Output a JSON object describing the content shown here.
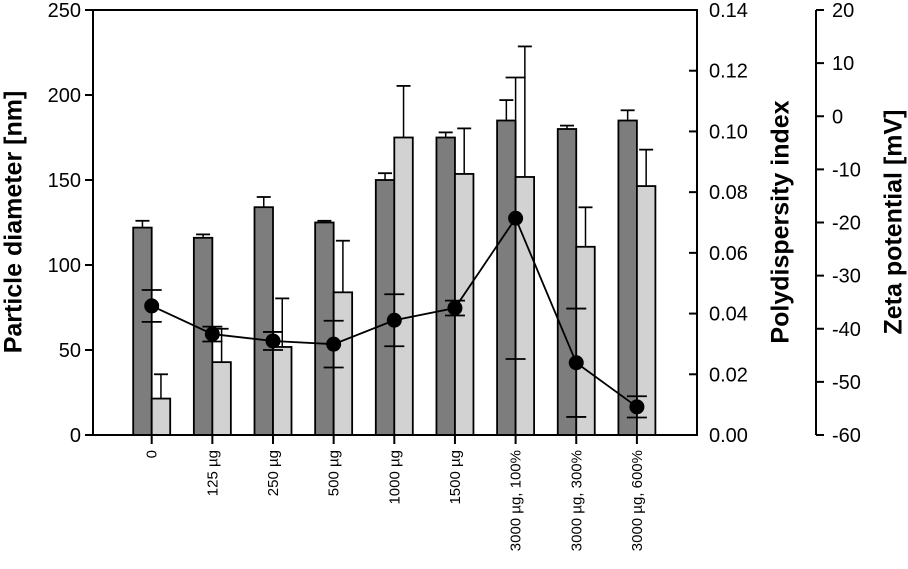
{
  "chart_data": {
    "type": "bar",
    "subtype": "grouped-bars-with-line-overlay",
    "title": "",
    "grid": false,
    "legend": "none",
    "categories": [
      "0",
      "125 µg",
      "250 µg",
      "500 µg",
      "1000 µg",
      "1500 µg",
      "3000 µg, 100%",
      "3000 µg, 300%",
      "3000 µg, 600%"
    ],
    "series": [
      {
        "name": "Particle diameter",
        "type": "bar",
        "axis": "left",
        "color": "#7d7d7d",
        "values": [
          122,
          116,
          134,
          125,
          150,
          175,
          185,
          180,
          185
        ],
        "errors": [
          4,
          2,
          6,
          1,
          4,
          3,
          12,
          2,
          6
        ]
      },
      {
        "name": "Polydispersity index",
        "type": "bar",
        "axis": "right1",
        "color": "#d2d2d2",
        "values": [
          0.012,
          0.024,
          0.029,
          0.047,
          0.098,
          0.086,
          0.085,
          0.062,
          0.082
        ],
        "errors": [
          0.008,
          0.011,
          0.016,
          0.017,
          0.017,
          0.015,
          0.043,
          0.013,
          0.012
        ]
      },
      {
        "name": "Zeta potential",
        "type": "line-scatter",
        "axis": "right2",
        "color": "#000000",
        "values": [
          -35.7,
          -41.0,
          -42.3,
          -42.9,
          -38.4,
          -36.1,
          -19.2,
          -46.4,
          -54.7
        ],
        "errors": [
          3.0,
          1.4,
          1.7,
          4.4,
          4.9,
          1.4,
          26.5,
          10.2,
          2.0
        ]
      }
    ],
    "axes": {
      "left": {
        "label": "Particle diameter [nm]",
        "min": 0,
        "max": 250,
        "ticks": [
          0,
          50,
          100,
          150,
          200,
          250
        ],
        "tick_labels": [
          "0",
          "50",
          "100",
          "150",
          "200",
          "250"
        ]
      },
      "right1": {
        "label": "Polydispersity index",
        "min": 0,
        "max": 0.14,
        "ticks": [
          0,
          0.02,
          0.04,
          0.06,
          0.08,
          0.1,
          0.12,
          0.14
        ],
        "tick_labels": [
          "0.00",
          "0.02",
          "0.04",
          "0.06",
          "0.08",
          "0.10",
          "0.12",
          "0.14"
        ]
      },
      "right2": {
        "label": "Zeta potential [mV]",
        "min": -60,
        "max": 20,
        "ticks": [
          -60,
          -50,
          -40,
          -30,
          -20,
          -10,
          0,
          10,
          20
        ],
        "tick_labels": [
          "-60",
          "-50",
          "-40",
          "-30",
          "-20",
          "-10",
          "0",
          "10",
          "20"
        ]
      }
    },
    "colors": {
      "bar_dark": "#7d7d7d",
      "bar_light": "#d2d2d2",
      "line": "#000000",
      "axis": "#000000",
      "background": "#ffffff"
    }
  }
}
